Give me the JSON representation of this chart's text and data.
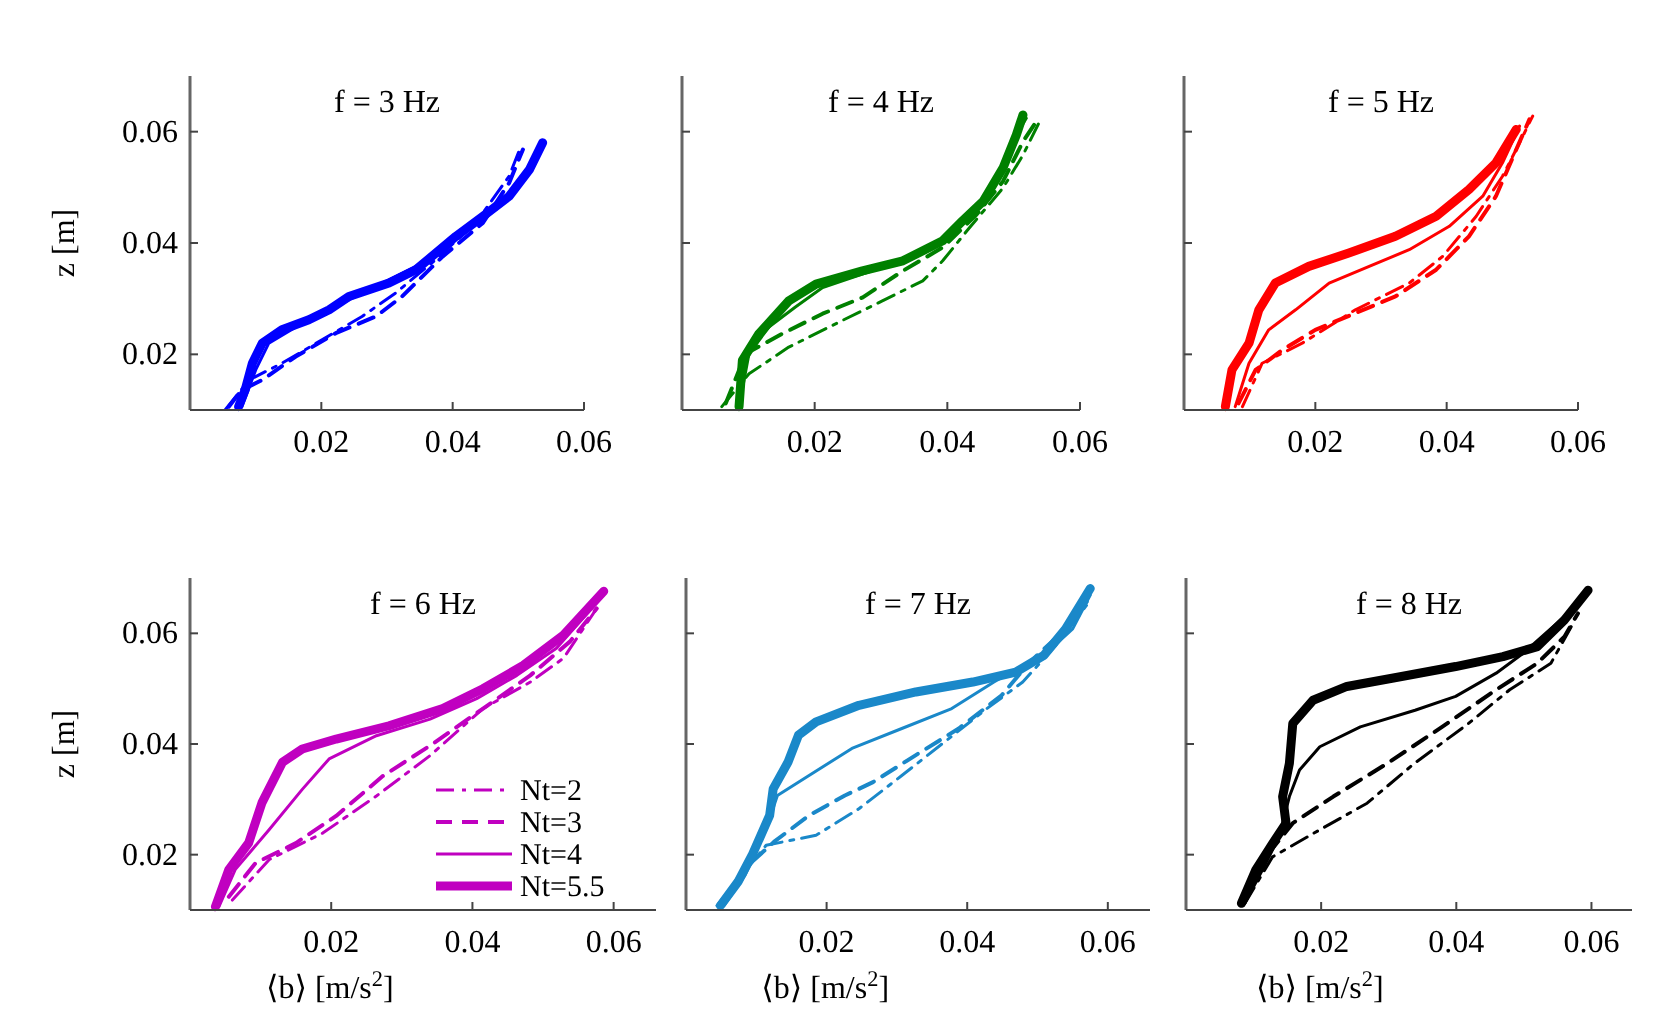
{
  "chart_data": [
    {
      "type": "line",
      "title": "f = 3 Hz",
      "ylabel": "z [m]",
      "xlim": [
        0,
        0.06
      ],
      "ylim": [
        0.01,
        0.07
      ],
      "xticks": [
        0.02,
        0.04,
        0.06
      ],
      "yticks": [
        0.02,
        0.04,
        0.06
      ],
      "series": [
        {
          "color": "#0000ff",
          "line_style": "dashdot",
          "x": [
            0.0054,
            0.009,
            0.014,
            0.0201,
            0.0262,
            0.0313,
            0.0374,
            0.0435,
            0.0486,
            0.0502
          ],
          "values": [
            0.0101,
            0.0154,
            0.0184,
            0.0226,
            0.0268,
            0.031,
            0.037,
            0.0436,
            0.052,
            0.0568
          ]
        },
        {
          "color": "#0000ff",
          "line_style": "dashed",
          "x": [
            0.0059,
            0.0079,
            0.011,
            0.0161,
            0.0222,
            0.0283,
            0.0323,
            0.0385,
            0.0446,
            0.0486,
            0.0507
          ],
          "values": [
            0.0106,
            0.0136,
            0.0154,
            0.0196,
            0.0238,
            0.0268,
            0.0304,
            0.0376,
            0.0436,
            0.0508,
            0.0568
          ]
        },
        {
          "color": "#0000ff",
          "line_style": "solid",
          "x": [
            0.0079,
            0.01,
            0.012,
            0.0171,
            0.0222,
            0.0283,
            0.0344,
            0.0405,
            0.0466,
            0.0517,
            0.0537
          ],
          "values": [
            0.0106,
            0.0172,
            0.022,
            0.0256,
            0.0286,
            0.0322,
            0.0358,
            0.0412,
            0.046,
            0.0532,
            0.0574
          ]
        },
        {
          "color": "#0000ff",
          "line_style": "solid",
          "x": [
            0.0074,
            0.0084,
            0.0095,
            0.011,
            0.014,
            0.0181,
            0.0212,
            0.0242,
            0.0303,
            0.0344,
            0.0405,
            0.0446,
            0.0486,
            0.0517,
            0.0537
          ],
          "values": [
            0.0106,
            0.0136,
            0.0184,
            0.022,
            0.0244,
            0.0262,
            0.028,
            0.0304,
            0.0328,
            0.0352,
            0.0412,
            0.0448,
            0.0484,
            0.0532,
            0.058
          ]
        }
      ]
    },
    {
      "type": "line",
      "title": "f = 4 Hz",
      "xlim": [
        0,
        0.06
      ],
      "ylim": [
        0.01,
        0.07
      ],
      "xticks": [
        0.02,
        0.04,
        0.06
      ],
      "yticks": [
        0.02,
        0.04,
        0.06
      ],
      "tick_labels": "x",
      "series": [
        {
          "color": "#008000",
          "line_style": "dashdot",
          "x": [
            0.006,
            0.0101,
            0.0161,
            0.0242,
            0.0302,
            0.0363,
            0.0393,
            0.0433,
            0.0484,
            0.0514,
            0.0539
          ],
          "values": [
            0.0106,
            0.0165,
            0.0213,
            0.0261,
            0.0296,
            0.0332,
            0.0368,
            0.0427,
            0.0499,
            0.0558,
            0.0618
          ]
        },
        {
          "color": "#008000",
          "line_style": "dashed",
          "x": [
            0.0066,
            0.0096,
            0.0151,
            0.0212,
            0.0272,
            0.0333,
            0.0393,
            0.0444,
            0.0484,
            0.0514,
            0.0534
          ],
          "values": [
            0.0112,
            0.0201,
            0.0237,
            0.0273,
            0.0302,
            0.035,
            0.0392,
            0.0451,
            0.0511,
            0.0582,
            0.0618
          ]
        },
        {
          "color": "#008000",
          "line_style": "solid",
          "x": [
            0.0086,
            0.0101,
            0.0131,
            0.0171,
            0.0212,
            0.0272,
            0.0333,
            0.0393,
            0.0433,
            0.0474,
            0.0504,
            0.0519
          ],
          "values": [
            0.0106,
            0.0201,
            0.0249,
            0.0285,
            0.032,
            0.0344,
            0.0368,
            0.0404,
            0.0451,
            0.0511,
            0.0594,
            0.0624
          ]
        },
        {
          "color": "#008000",
          "line_style": "solid",
          "x": [
            0.0086,
            0.0091,
            0.0116,
            0.0161,
            0.0202,
            0.0272,
            0.0333,
            0.0393,
            0.0423,
            0.0454,
            0.0484,
            0.0504,
            0.0514
          ],
          "values": [
            0.0106,
            0.0189,
            0.0237,
            0.0296,
            0.0326,
            0.035,
            0.0368,
            0.0404,
            0.044,
            0.0475,
            0.0535,
            0.0594,
            0.063
          ]
        }
      ]
    },
    {
      "type": "line",
      "title": "f = 5 Hz",
      "xlim": [
        0,
        0.06
      ],
      "ylim": [
        0.01,
        0.07
      ],
      "xticks": [
        0.02,
        0.04,
        0.06
      ],
      "yticks": [
        0.02,
        0.04,
        0.06
      ],
      "tick_labels": "x",
      "series": [
        {
          "color": "#ff0000",
          "line_style": "dashdot",
          "x": [
            0.0089,
            0.0119,
            0.018,
            0.0261,
            0.0343,
            0.0394,
            0.0445,
            0.0485,
            0.0511,
            0.0531
          ],
          "values": [
            0.0106,
            0.0184,
            0.022,
            0.028,
            0.0328,
            0.0376,
            0.0448,
            0.052,
            0.058,
            0.0628
          ]
        },
        {
          "color": "#ff0000",
          "line_style": "dashed",
          "x": [
            0.0083,
            0.0109,
            0.015,
            0.02,
            0.0261,
            0.0322,
            0.0384,
            0.0434,
            0.0475,
            0.0506,
            0.0526
          ],
          "values": [
            0.0112,
            0.0172,
            0.0208,
            0.0244,
            0.0274,
            0.0304,
            0.0352,
            0.0412,
            0.0484,
            0.0568,
            0.0622
          ]
        },
        {
          "color": "#ff0000",
          "line_style": "solid",
          "x": [
            0.0078,
            0.0099,
            0.0129,
            0.017,
            0.0221,
            0.0282,
            0.0343,
            0.0404,
            0.0455,
            0.0485,
            0.0511
          ],
          "values": [
            0.0106,
            0.0184,
            0.0244,
            0.028,
            0.0328,
            0.0358,
            0.0388,
            0.043,
            0.0484,
            0.0544,
            0.061
          ]
        },
        {
          "color": "#ff0000",
          "line_style": "solid",
          "x": [
            0.0063,
            0.0073,
            0.0099,
            0.0114,
            0.0139,
            0.019,
            0.0251,
            0.0322,
            0.0384,
            0.0434,
            0.0475,
            0.0506
          ],
          "values": [
            0.0106,
            0.0172,
            0.022,
            0.028,
            0.0328,
            0.0358,
            0.0382,
            0.0412,
            0.0448,
            0.0496,
            0.0544,
            0.0604
          ]
        }
      ]
    },
    {
      "type": "line",
      "title": "f = 6 Hz",
      "ylabel": "z [m]",
      "xlabel": "⟨b⟩ [m/s$^{2}$]",
      "xlim": [
        0,
        0.066
      ],
      "ylim": [
        0.01,
        0.07
      ],
      "xticks": [
        0.02,
        0.04,
        0.06
      ],
      "yticks": [
        0.02,
        0.04,
        0.06
      ],
      "legend": "bottom right",
      "series": [
        {
          "name": "Nt=2",
          "color": "#c000c0",
          "line_style": "dashdot",
          "x": [
            0.006,
            0.0112,
            0.0188,
            0.0264,
            0.034,
            0.0415,
            0.0482,
            0.0529,
            0.0576
          ],
          "values": [
            0.0118,
            0.0191,
            0.0239,
            0.0306,
            0.0379,
            0.0464,
            0.0512,
            0.0555,
            0.0645
          ]
        },
        {
          "name": "Nt=3",
          "color": "#c000c0",
          "line_style": "dashed",
          "x": [
            0.0055,
            0.0093,
            0.015,
            0.0207,
            0.0273,
            0.034,
            0.0415,
            0.0482,
            0.0538,
            0.0576
          ],
          "values": [
            0.0124,
            0.0185,
            0.0221,
            0.027,
            0.0342,
            0.0397,
            0.0464,
            0.0524,
            0.0585,
            0.0645
          ]
        },
        {
          "name": "Nt=4",
          "color": "#c000c0",
          "line_style": "solid",
          "x": [
            0.0041,
            0.0064,
            0.0112,
            0.0159,
            0.0197,
            0.0264,
            0.034,
            0.0406,
            0.0463,
            0.0519,
            0.0586
          ],
          "values": [
            0.0106,
            0.0173,
            0.0245,
            0.0318,
            0.0373,
            0.0415,
            0.0445,
            0.0482,
            0.0524,
            0.0573,
            0.067
          ]
        },
        {
          "name": "Nt=5.5",
          "color": "#c000c0",
          "line_style": "solid",
          "x": [
            0.0036,
            0.0055,
            0.0083,
            0.0102,
            0.0131,
            0.0159,
            0.0207,
            0.0282,
            0.0358,
            0.0415,
            0.0472,
            0.0529,
            0.0586
          ],
          "values": [
            0.0106,
            0.0173,
            0.0221,
            0.0294,
            0.0367,
            0.0391,
            0.0409,
            0.0433,
            0.0464,
            0.05,
            0.0542,
            0.0597,
            0.0676
          ]
        }
      ]
    },
    {
      "type": "line",
      "title": "f = 7 Hz",
      "xlabel": "⟨b⟩ [m/s$^{2}$]",
      "xlim": [
        0,
        0.066
      ],
      "ylim": [
        0.01,
        0.07
      ],
      "xticks": [
        0.02,
        0.04,
        0.06
      ],
      "yticks": [
        0.02,
        0.04,
        0.06
      ],
      "tick_labels": "x",
      "series": [
        {
          "color": "#1a88c9",
          "line_style": "dashdot",
          "x": [
            0.0044,
            0.0114,
            0.0185,
            0.0246,
            0.0307,
            0.0368,
            0.0428,
            0.0479,
            0.053,
            0.057
          ],
          "values": [
            0.0108,
            0.0217,
            0.0235,
            0.0283,
            0.0343,
            0.0404,
            0.0464,
            0.0512,
            0.0584,
            0.0651
          ]
        },
        {
          "color": "#1a88c9",
          "line_style": "dashed",
          "x": [
            0.0049,
            0.0094,
            0.0125,
            0.0175,
            0.0226,
            0.0266,
            0.0327,
            0.0388,
            0.0449,
            0.0489,
            0.053,
            0.057
          ],
          "values": [
            0.0114,
            0.0187,
            0.0223,
            0.0271,
            0.0307,
            0.0331,
            0.038,
            0.0428,
            0.0488,
            0.0548,
            0.0596,
            0.0657
          ]
        },
        {
          "color": "#1a88c9",
          "line_style": "solid",
          "x": [
            0.0054,
            0.0084,
            0.0114,
            0.013,
            0.0175,
            0.0236,
            0.0307,
            0.0378,
            0.0438,
            0.0479,
            0.0519,
            0.055,
            0.0575
          ],
          "values": [
            0.0108,
            0.0163,
            0.0247,
            0.0307,
            0.0343,
            0.0392,
            0.0428,
            0.0464,
            0.0512,
            0.0542,
            0.0572,
            0.0608,
            0.0669
          ]
        },
        {
          "color": "#1a88c9",
          "line_style": "solid",
          "x": [
            0.0049,
            0.0074,
            0.0094,
            0.0119,
            0.0124,
            0.0145,
            0.016,
            0.0185,
            0.0246,
            0.0327,
            0.0408,
            0.0469,
            0.0509,
            0.054,
            0.0575
          ],
          "values": [
            0.0108,
            0.0151,
            0.0199,
            0.0271,
            0.0319,
            0.0367,
            0.0416,
            0.044,
            0.047,
            0.0494,
            0.0512,
            0.053,
            0.056,
            0.0608,
            0.0681
          ]
        }
      ]
    },
    {
      "type": "line",
      "title": "f = 8 Hz",
      "xlabel": "⟨b⟩ [m/s$^{2}$]",
      "xlim": [
        0,
        0.066
      ],
      "ylim": [
        0.01,
        0.07
      ],
      "xticks": [
        0.02,
        0.04,
        0.06
      ],
      "yticks": [
        0.02,
        0.04,
        0.06
      ],
      "tick_labels": "x",
      "series": [
        {
          "color": "#000000",
          "line_style": "dashdot",
          "x": [
            0.0087,
            0.0128,
            0.0198,
            0.0268,
            0.0338,
            0.0418,
            0.0479,
            0.054,
            0.057
          ],
          "values": [
            0.0112,
            0.0196,
            0.0245,
            0.0293,
            0.0365,
            0.0437,
            0.0498,
            0.0546,
            0.0612
          ]
        },
        {
          "color": "#000000",
          "line_style": "dashed",
          "x": [
            0.0087,
            0.0118,
            0.0158,
            0.0218,
            0.0298,
            0.0379,
            0.0459,
            0.052,
            0.056,
            0.058
          ],
          "values": [
            0.0118,
            0.0196,
            0.0257,
            0.0305,
            0.0365,
            0.0431,
            0.0498,
            0.0546,
            0.0594,
            0.0636
          ]
        },
        {
          "color": "#000000",
          "line_style": "solid",
          "x": [
            0.0087,
            0.0113,
            0.0138,
            0.0153,
            0.0168,
            0.0198,
            0.0258,
            0.0339,
            0.0399,
            0.0459,
            0.0499,
            0.056,
            0.059
          ],
          "values": [
            0.0112,
            0.0172,
            0.0233,
            0.0305,
            0.0353,
            0.0395,
            0.0431,
            0.0461,
            0.0486,
            0.0528,
            0.0564,
            0.063,
            0.0672
          ]
        },
        {
          "color": "#000000",
          "line_style": "solid",
          "x": [
            0.0082,
            0.0103,
            0.0128,
            0.0148,
            0.0143,
            0.0153,
            0.0158,
            0.0188,
            0.0238,
            0.0319,
            0.0399,
            0.0469,
            0.052,
            0.056,
            0.0595
          ],
          "values": [
            0.0112,
            0.0172,
            0.022,
            0.0257,
            0.0305,
            0.0365,
            0.0437,
            0.0479,
            0.0504,
            0.0522,
            0.054,
            0.0558,
            0.0576,
            0.0624,
            0.0678
          ]
        }
      ]
    }
  ]
}
